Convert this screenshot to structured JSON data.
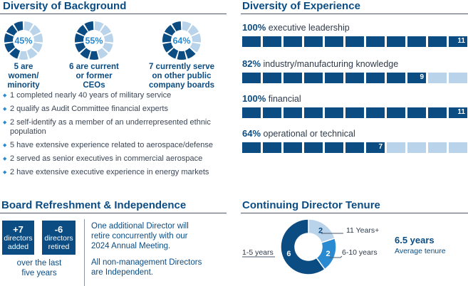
{
  "diversity_background": {
    "title": "Diversity of Background",
    "donuts": [
      {
        "pct": "45%",
        "filled": 5,
        "total": 11,
        "caption": [
          "5 are",
          "women/",
          "minority"
        ]
      },
      {
        "pct": "55%",
        "filled": 6,
        "total": 11,
        "caption": [
          "6 are current",
          "or former",
          "CEOs"
        ]
      },
      {
        "pct": "64%",
        "filled": 7,
        "total": 11,
        "caption": [
          "7 currently serve",
          "on other public",
          "company boards"
        ]
      }
    ],
    "bullets": [
      "1 completed nearly 40 years of military service",
      "2 qualify as Audit Committee financial experts",
      "2 self-identify as a member of an underrepresented ethnic population",
      "5 have extensive experience related to aerospace/defense",
      "2 served as senior executives in commercial aerospace",
      "2 have extensive executive experience in energy markets"
    ]
  },
  "diversity_experience": {
    "title": "Diversity of Experience",
    "rows": [
      {
        "pct": "100%",
        "label": "executive leadership",
        "filled": 11,
        "count": "11"
      },
      {
        "pct": "82%",
        "label": "industry/manufacturing knowledge",
        "filled": 9,
        "count": "9"
      },
      {
        "pct": "100%",
        "label": "financial",
        "filled": 11,
        "count": "11"
      },
      {
        "pct": "64%",
        "label": "operational or technical",
        "filled": 7,
        "count": "7"
      }
    ]
  },
  "refreshment": {
    "title": "Board Refreshment & Independence",
    "added_value": "+7",
    "added_label": [
      "directors",
      "added"
    ],
    "retired_value": "-6",
    "retired_label": [
      "directors",
      "retired"
    ],
    "period": [
      "over the last",
      "five years"
    ],
    "paragraph1": [
      "One additional Director will",
      "retire concurrently with our",
      "2024 Annual Meeting."
    ],
    "paragraph2": [
      "All non-management Directors",
      "are Independent."
    ]
  },
  "tenure": {
    "title": "Continuing Director Tenure",
    "segments": [
      {
        "label": "11 Years+",
        "value": 2,
        "color": "#b9d3ea"
      },
      {
        "label": "6-10 years",
        "value": 2,
        "color": "#2a8ad1"
      },
      {
        "label": "1-5 years",
        "value": 6,
        "color": "#0b4c83"
      }
    ],
    "average_value": "6.5 years",
    "average_label": "Average tenure"
  },
  "colors": {
    "navy": "#0b4c83",
    "light": "#b9d3ea",
    "mid": "#2a8ad1"
  }
}
